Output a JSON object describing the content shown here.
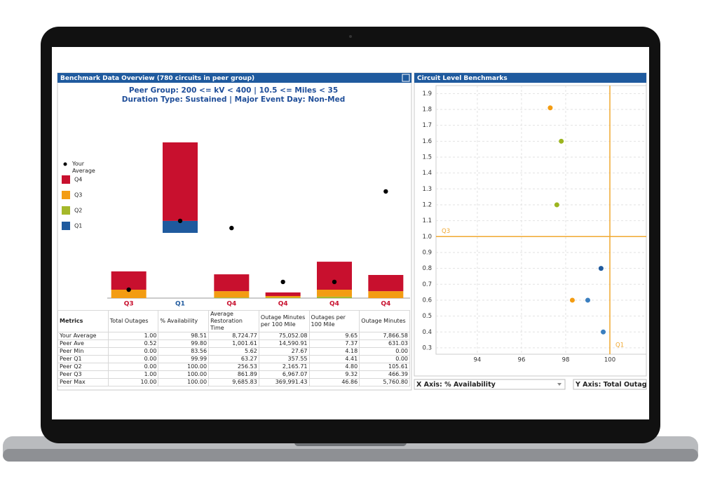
{
  "left_panel": {
    "title": "Benchmark Data Overview (780 circuits in peer group)",
    "subtitle_lines": [
      "Peer Group: 200 <= kV < 400 | 10.5 <= Miles < 35",
      "Duration Type: Sustained | Major Event Day: Non-Med"
    ]
  },
  "right_panel": {
    "title": "Circuit Level Benchmarks",
    "x_axis_select": "X Axis: % Availability",
    "y_axis_select": "Y Axis: Total Outag"
  },
  "chart_data": [
    {
      "type": "bar",
      "stacked": true,
      "ylim": [
        0,
        100
      ],
      "base": [
        0,
        31,
        0,
        0,
        0,
        0
      ],
      "series": [
        {
          "name": "Q1",
          "color": "#1f5a9e",
          "values": [
            0,
            5.7,
            0,
            0,
            0,
            0
          ]
        },
        {
          "name": "Q2",
          "color": "#a5b82a",
          "values": [
            0,
            0,
            0.3,
            0.3,
            0.7,
            0
          ]
        },
        {
          "name": "Q3",
          "color": "#f39c12",
          "values": [
            4,
            0,
            3,
            0.7,
            3.3,
            3.3
          ]
        },
        {
          "name": "Q4",
          "color": "#c8102e",
          "values": [
            8.7,
            37.3,
            8,
            1.7,
            13.3,
            7.7
          ]
        }
      ],
      "markers": {
        "name": "Your Average",
        "color": "#000000",
        "values": [
          4,
          36.7,
          33.3,
          7.7,
          7.7,
          50.7
        ]
      },
      "quartile_labels": [
        "Q3",
        "Q1",
        "Q4",
        "Q4",
        "Q4",
        "Q4"
      ],
      "label_colors": [
        "#c8102e",
        "#1f5a9e",
        "#c8102e",
        "#c8102e",
        "#c8102e",
        "#c8102e"
      ]
    },
    {
      "type": "scatter",
      "x": [
        97.3,
        97.8,
        97.6,
        99.6,
        98.3,
        99.0,
        99.7
      ],
      "y": [
        1.81,
        1.6,
        1.2,
        0.8,
        0.6,
        0.6,
        0.4
      ],
      "colors": [
        "#f39c12",
        "#9cb51f",
        "#9cb51f",
        "#1f5a9e",
        "#f39c12",
        "#3a7fc0",
        "#3a7fc0"
      ],
      "xlim": [
        92.13,
        101.65
      ],
      "ylim": [
        0.26,
        1.95
      ],
      "xticks": [
        94,
        96,
        98,
        100
      ],
      "yticks": [
        0.3,
        0.4,
        0.5,
        0.6,
        0.7,
        0.8,
        0.9,
        {
          "value": 1,
          "label": "1.0"
        },
        1.1,
        1.2,
        1.3,
        1.4,
        1.5,
        1.6,
        1.7,
        1.8,
        1.9
      ],
      "grid": true,
      "ref_lines": [
        {
          "axis": "y",
          "value": 1,
          "label": "Q3",
          "color": "#f0a830"
        },
        {
          "axis": "x",
          "value": 100,
          "label": "Q1",
          "color": "#f0a830"
        }
      ]
    }
  ],
  "table": {
    "columns": [
      "Metrics",
      "Total Outages",
      "% Availability",
      "Average Restoration Time",
      "Outage Minutes per 100 Mile",
      "Outages per 100 Mile",
      "Outage Minutes"
    ],
    "rows": [
      [
        "Your Average",
        "1.00",
        "98.51",
        "8,724.77",
        "75,052.08",
        "9.65",
        "7,866.58"
      ],
      [
        "Peer Ave",
        "0.52",
        "99.80",
        "1,001.61",
        "14,590.91",
        "7.37",
        "631.03"
      ],
      [
        "Peer Min",
        "0.00",
        "83.56",
        "5.62",
        "27.67",
        "4.18",
        "0.00"
      ],
      [
        "Peer Q1",
        "0.00",
        "99.99",
        "63.27",
        "357.55",
        "4.41",
        "0.00"
      ],
      [
        "Peer Q2",
        "0.00",
        "100.00",
        "256.53",
        "2,165.71",
        "4.80",
        "105.61"
      ],
      [
        "Peer Q3",
        "1.00",
        "100.00",
        "861.89",
        "6,967.07",
        "9.32",
        "466.39"
      ],
      [
        "Peer Max",
        "10.00",
        "100.00",
        "9,685.83",
        "369,991.43",
        "46.86",
        "5,760.80"
      ]
    ]
  }
}
